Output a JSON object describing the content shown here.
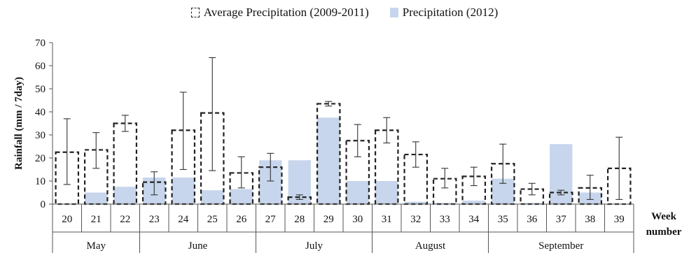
{
  "chart_data": {
    "type": "bar",
    "categories": [
      "20",
      "21",
      "22",
      "23",
      "24",
      "25",
      "26",
      "27",
      "28",
      "29",
      "30",
      "31",
      "32",
      "33",
      "34",
      "35",
      "36",
      "37",
      "38",
      "39"
    ],
    "months": [
      {
        "label": "May",
        "weeks": [
          "20",
          "21",
          "22"
        ]
      },
      {
        "label": "June",
        "weeks": [
          "23",
          "24",
          "25",
          "26"
        ]
      },
      {
        "label": "July",
        "weeks": [
          "27",
          "28",
          "29",
          "30"
        ]
      },
      {
        "label": "August",
        "weeks": [
          "31",
          "32",
          "33",
          "34"
        ]
      },
      {
        "label": "September",
        "weeks": [
          "35",
          "36",
          "37",
          "38",
          "39"
        ]
      }
    ],
    "series": [
      {
        "name": "Average Precipitation (2009-2011)",
        "style": "dashed-outline",
        "values": [
          22.5,
          23.5,
          35,
          9.5,
          32,
          39.5,
          13.5,
          16,
          3,
          43.5,
          27.5,
          32,
          21.5,
          11,
          12,
          17.5,
          6.5,
          5,
          7,
          15.5
        ],
        "error_low": [
          8.5,
          15.5,
          31.5,
          4,
          15,
          14.5,
          7,
          10,
          2,
          42.5,
          20.5,
          26.5,
          16,
          7,
          8,
          9,
          4,
          4,
          2,
          2
        ],
        "error_high": [
          37,
          31,
          38.5,
          14,
          48.5,
          63.5,
          20.5,
          22,
          4,
          44.5,
          34.5,
          37.5,
          27,
          15.5,
          16,
          26,
          9,
          6,
          12.5,
          29
        ]
      },
      {
        "name": "Precipitation (2012)",
        "style": "filled",
        "values": [
          0,
          5,
          7.5,
          11.5,
          11.5,
          6,
          6.5,
          19,
          19,
          37.5,
          10,
          10,
          1,
          0.5,
          1.5,
          11,
          0.5,
          26,
          5,
          0
        ]
      }
    ],
    "ylabel": "Rainfall (mm / 7day)",
    "xlabel": "Week number",
    "xlabel_lines": [
      "Week",
      "number"
    ],
    "ylim": [
      0,
      70
    ],
    "yticks": [
      "0",
      "10",
      "20",
      "30",
      "40",
      "50",
      "60",
      "70"
    ],
    "legend_position": "top-center",
    "grid": false,
    "colors": {
      "fill": "#c7d6ec",
      "outline": "#222222",
      "axis": "#555555"
    }
  },
  "legend": {
    "avg_label": "Average Precipitation (2009-2011)",
    "fill_label": "Precipitation (2012)"
  }
}
